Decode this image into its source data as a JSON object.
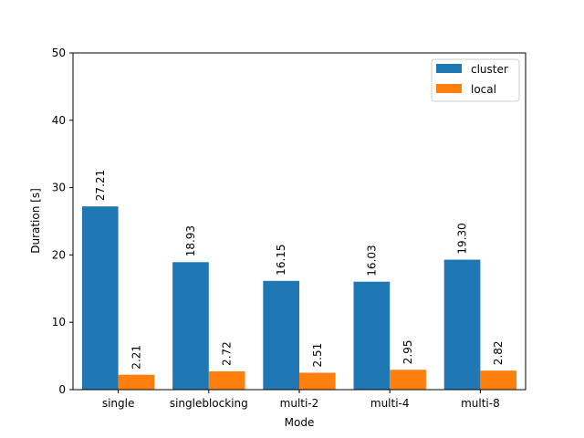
{
  "chart_data": {
    "type": "bar",
    "title": "",
    "xlabel": "Mode",
    "ylabel": "Duration [s]",
    "ylim": [
      0,
      50
    ],
    "yticks": [
      0,
      10,
      20,
      30,
      40,
      50
    ],
    "categories": [
      "single",
      "singleblocking",
      "multi-2",
      "multi-4",
      "multi-8"
    ],
    "series": [
      {
        "name": "cluster",
        "color": "#1f77b4",
        "values": [
          27.21,
          18.93,
          16.15,
          16.03,
          19.3
        ],
        "labels": [
          "27.21",
          "18.93",
          "16.15",
          "16.03",
          "19.30"
        ]
      },
      {
        "name": "local",
        "color": "#ff7f0e",
        "values": [
          2.21,
          2.72,
          2.51,
          2.95,
          2.82
        ],
        "labels": [
          "2.21",
          "2.72",
          "2.51",
          "2.95",
          "2.82"
        ]
      }
    ],
    "legend_position": "top-right",
    "grid": false
  }
}
